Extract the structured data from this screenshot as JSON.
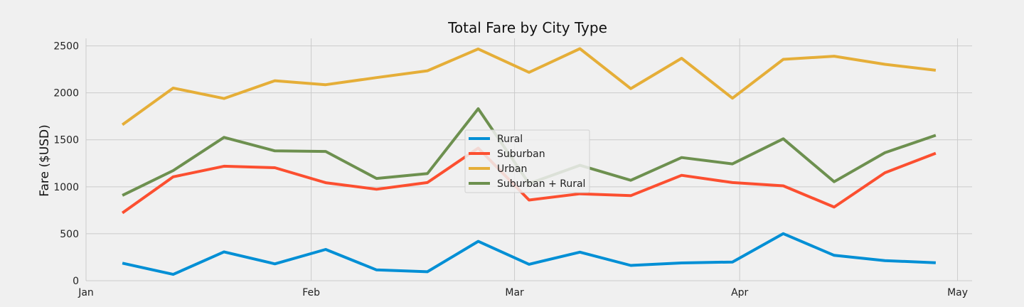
{
  "chart_data": {
    "type": "line",
    "title": "Total Fare by City Type",
    "xlabel": "",
    "ylabel": "Fare ($USD)",
    "x": [
      "2019-01-06",
      "2019-01-13",
      "2019-01-20",
      "2019-01-27",
      "2019-02-03",
      "2019-02-10",
      "2019-02-17",
      "2019-02-24",
      "2019-03-03",
      "2019-03-10",
      "2019-03-17",
      "2019-03-24",
      "2019-03-31",
      "2019-04-07",
      "2019-04-14",
      "2019-04-21",
      "2019-04-28"
    ],
    "xlim": [
      "2019-01-01",
      "2019-05-03"
    ],
    "xticks": [
      {
        "date": "2019-01-01",
        "label": "Jan"
      },
      {
        "date": "2019-02-01",
        "label": "Feb"
      },
      {
        "date": "2019-03-01",
        "label": "Mar"
      },
      {
        "date": "2019-04-01",
        "label": "Apr"
      },
      {
        "date": "2019-05-01",
        "label": "May"
      }
    ],
    "ylim": [
      0,
      2580
    ],
    "yticks": [
      0,
      500,
      1000,
      1500,
      2000,
      2500
    ],
    "grid": true,
    "legend_position": "center",
    "series": [
      {
        "name": "Rural",
        "color": "#008fd5",
        "values": [
          187,
          67,
          307,
          179,
          333,
          115,
          95,
          419,
          175,
          304,
          163,
          189,
          199,
          501,
          270,
          214,
          191
        ]
      },
      {
        "name": "Suburban",
        "color": "#fc4f30",
        "values": [
          722,
          1106,
          1219,
          1203,
          1043,
          974,
          1045,
          1412,
          859,
          925,
          906,
          1122,
          1045,
          1010,
          784,
          1149,
          1357
        ]
      },
      {
        "name": "Urban",
        "color": "#e5ae38",
        "values": [
          1661,
          2051,
          1940,
          2129,
          2087,
          2162,
          2235,
          2467,
          2218,
          2470,
          2045,
          2368,
          1943,
          2357,
          2390,
          2304,
          2240
        ]
      },
      {
        "name": "Suburban + Rural",
        "color": "#6d904f",
        "values": [
          909,
          1173,
          1526,
          1382,
          1376,
          1089,
          1140,
          1831,
          1034,
          1229,
          1069,
          1311,
          1244,
          1511,
          1054,
          1363,
          1548
        ]
      }
    ]
  }
}
